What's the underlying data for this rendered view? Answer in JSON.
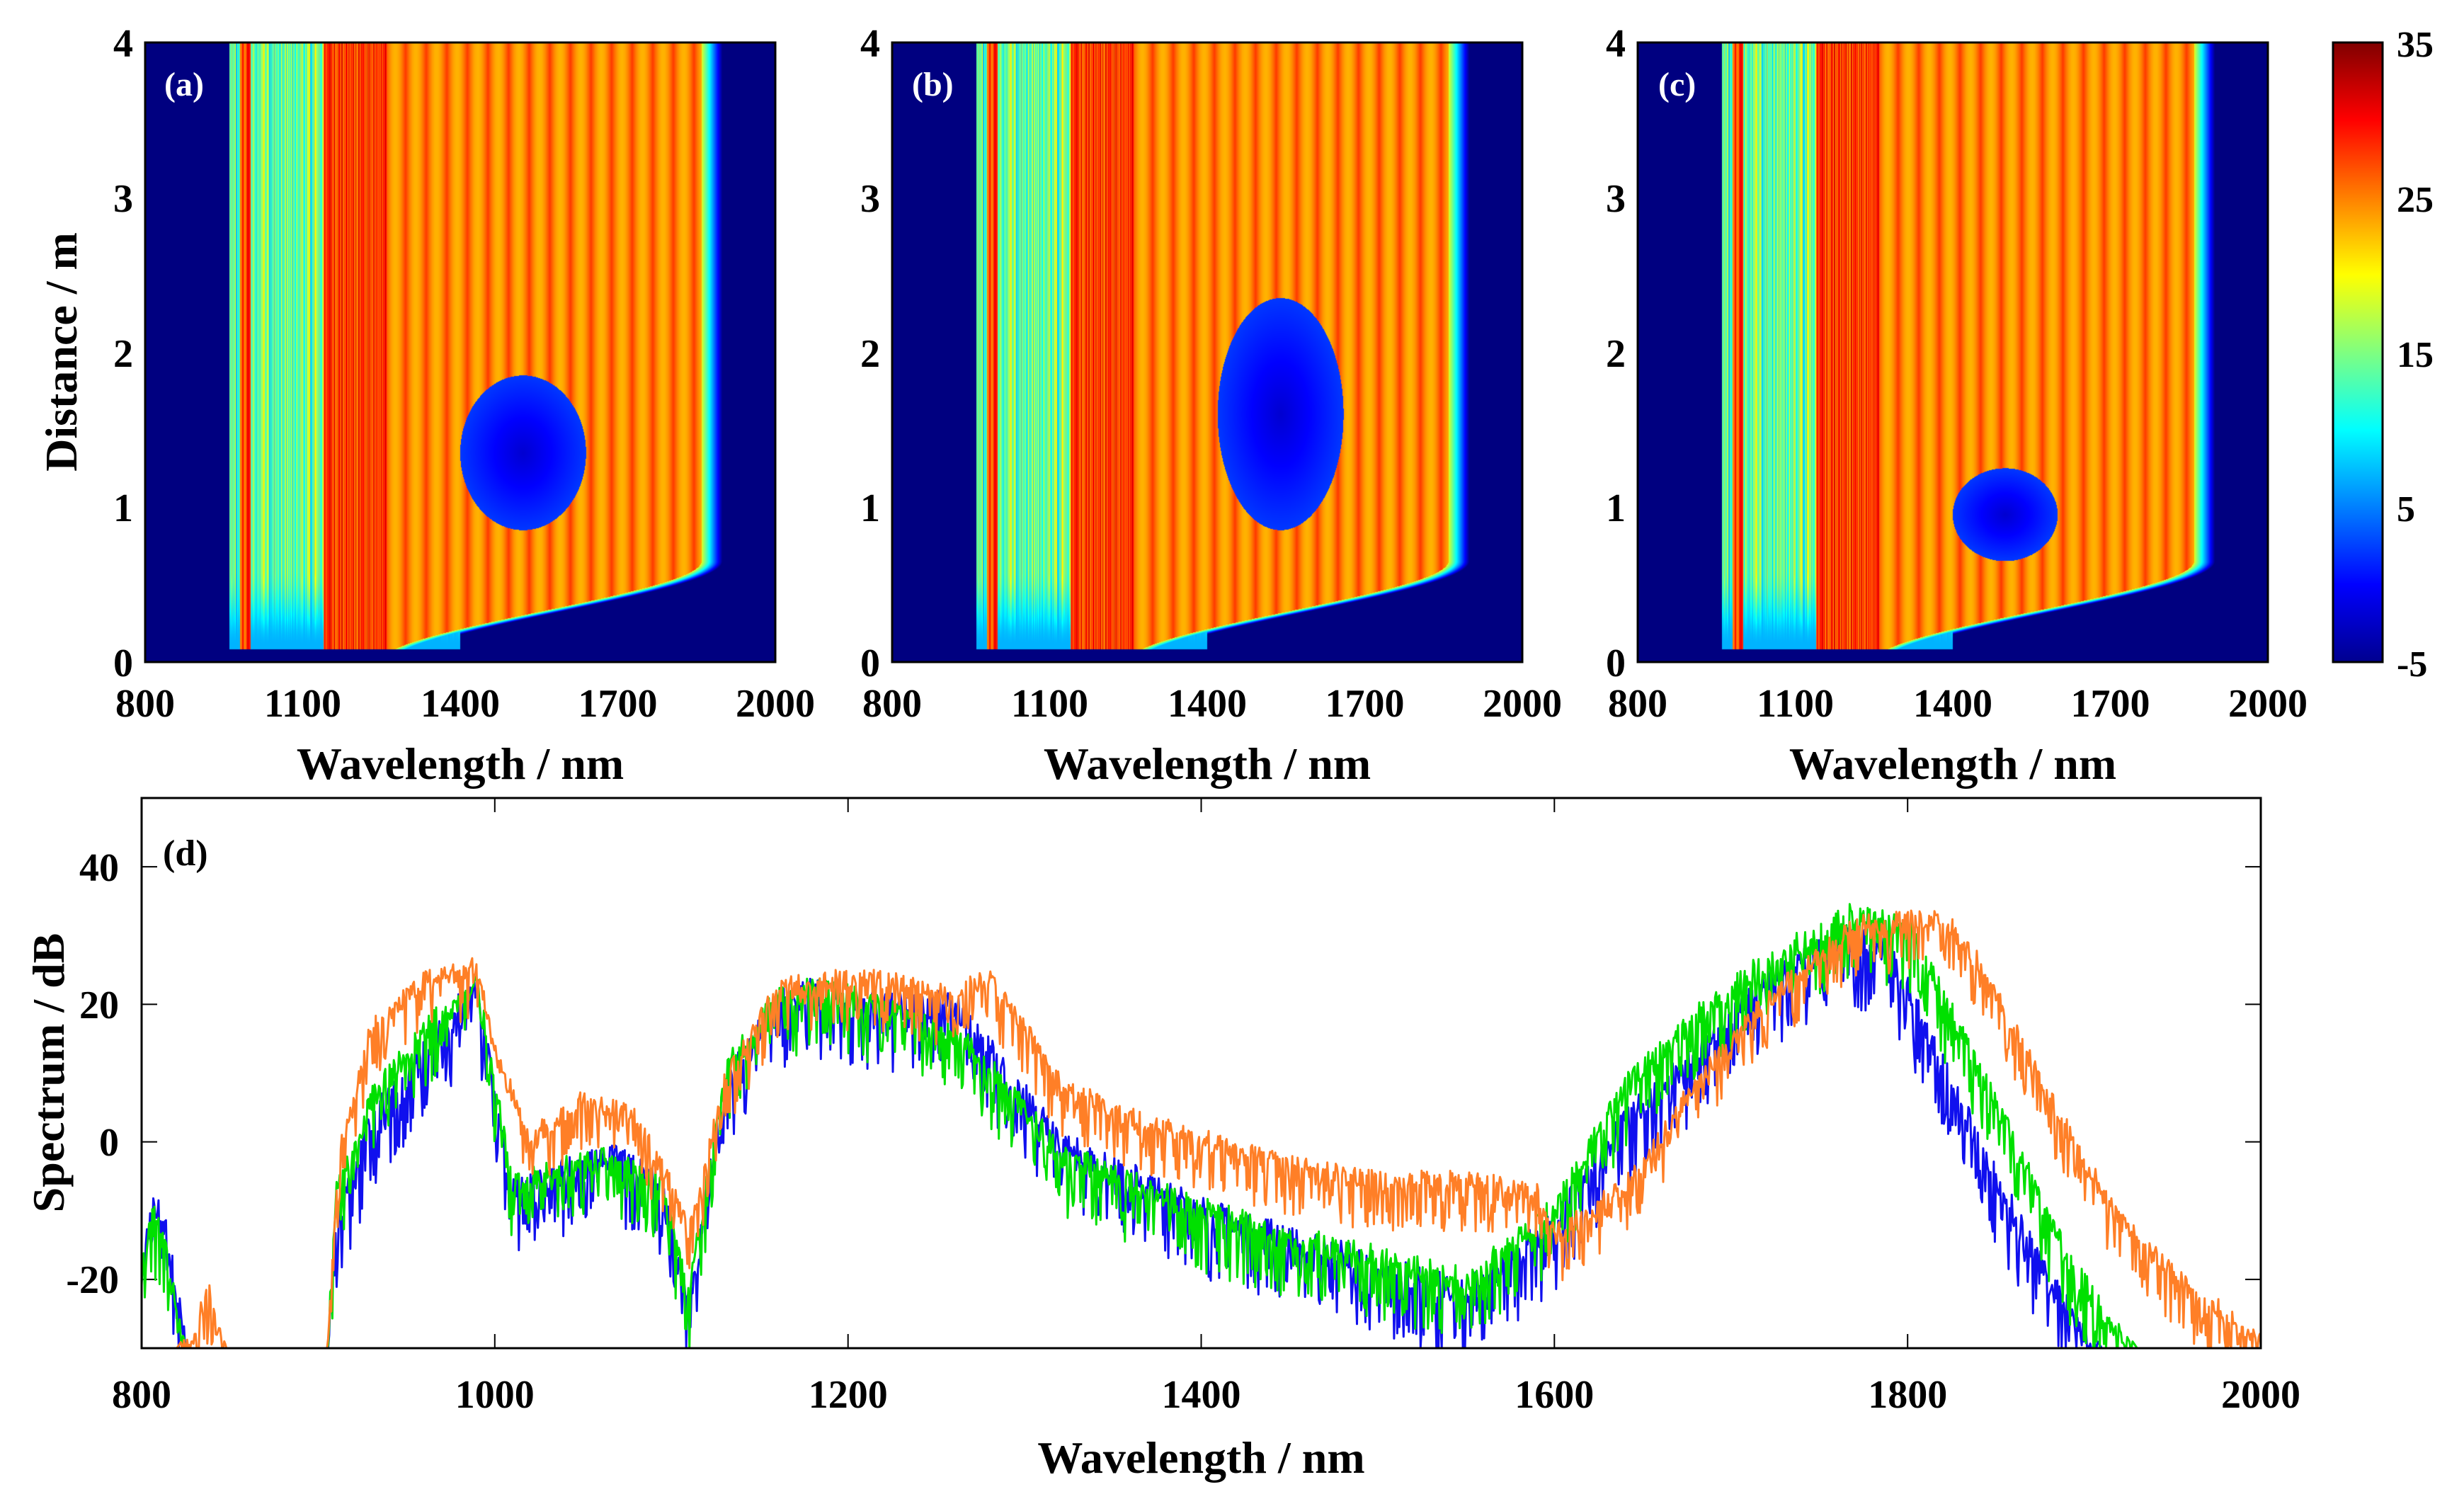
{
  "chart_data": [
    {
      "type": "heatmap",
      "panel_label": "(a)",
      "xlabel": "Wavelength / nm",
      "ylabel": "Distance / m",
      "xlim": [
        800,
        2000
      ],
      "ylim": [
        0,
        4
      ],
      "xticks": [
        "800",
        "1100",
        "1400",
        "1700",
        "2000"
      ],
      "yticks": [
        "0",
        "1",
        "2",
        "3",
        "4"
      ],
      "features": {
        "soliton_max_wavelength": 1860,
        "soliton_onset_distance": 0.35,
        "dispersive_wave_bands_nm": [
          [
            980,
            1000
          ],
          [
            1140,
            1260
          ]
        ],
        "hole_center": [
          1520,
          1.35
        ],
        "hole_radius": [
          120,
          0.5
        ]
      }
    },
    {
      "type": "heatmap",
      "panel_label": "(b)",
      "xlabel": "Wavelength / nm",
      "ylabel": "",
      "xlim": [
        800,
        2000
      ],
      "ylim": [
        0,
        4
      ],
      "xticks": [
        "800",
        "1100",
        "1400",
        "1700",
        "2000"
      ],
      "yticks": [
        "0",
        "1",
        "2",
        "3",
        "4"
      ],
      "features": {
        "soliton_max_wavelength": 1860,
        "soliton_onset_distance": 0.35,
        "dispersive_wave_bands_nm": [
          [
            980,
            1000
          ],
          [
            1140,
            1260
          ]
        ],
        "hole_center": [
          1540,
          1.6
        ],
        "hole_radius": [
          120,
          0.75
        ]
      }
    },
    {
      "type": "heatmap",
      "panel_label": "(c)",
      "xlabel": "Wavelength / nm",
      "ylabel": "",
      "xlim": [
        800,
        2000
      ],
      "ylim": [
        0,
        4
      ],
      "xticks": [
        "800",
        "1100",
        "1400",
        "1700",
        "2000"
      ],
      "yticks": [
        "0",
        "1",
        "2",
        "3",
        "4"
      ],
      "features": {
        "soliton_max_wavelength": 1860,
        "soliton_onset_distance": 0.35,
        "dispersive_wave_bands_nm": [
          [
            980,
            1000
          ],
          [
            1140,
            1260
          ]
        ],
        "hole_center": [
          1500,
          0.95
        ],
        "hole_radius": [
          100,
          0.3
        ]
      }
    },
    {
      "type": "colorbar",
      "range": [
        -5,
        35
      ],
      "ticks": [
        "35",
        "25",
        "15",
        "5",
        "-5"
      ],
      "colormap": "jet"
    },
    {
      "type": "line",
      "panel_label": "(d)",
      "xlabel": "Wavelength / nm",
      "ylabel": "Spectrum / dB",
      "xlim": [
        800,
        2000
      ],
      "ylim": [
        -30,
        50
      ],
      "xticks": [
        "800",
        "1000",
        "1200",
        "1400",
        "1600",
        "1800",
        "2000"
      ],
      "yticks": [
        "-20",
        "0",
        "20",
        "40"
      ],
      "series": [
        {
          "name": "blue",
          "color": "#1010ee",
          "noise": 12,
          "x": [
            800,
            805,
            812,
            820,
            826,
            905,
            910,
            930,
            960,
            990,
            1000,
            1010,
            1040,
            1070,
            1095,
            1110,
            1130,
            1160,
            1180,
            1200,
            1230,
            1260,
            1290,
            1320,
            1360,
            1400,
            1450,
            1500,
            1550,
            1580,
            1600,
            1640,
            1680,
            1720,
            1760,
            1790,
            1800,
            1840,
            1880,
            1910
          ],
          "y": [
            -18,
            -6,
            -8,
            -20,
            -30,
            -30,
            -10,
            5,
            15,
            25,
            8,
            -5,
            -2,
            0,
            -5,
            -22,
            10,
            22,
            24,
            22,
            22,
            22,
            12,
            2,
            -3,
            -8,
            -12,
            -16,
            -20,
            -14,
            -10,
            5,
            15,
            25,
            32,
            30,
            24,
            2,
            -18,
            -30
          ]
        },
        {
          "name": "green",
          "color": "#00e000",
          "noise": 11,
          "x": [
            800,
            805,
            812,
            820,
            826,
            905,
            910,
            930,
            960,
            990,
            1000,
            1010,
            1040,
            1070,
            1095,
            1110,
            1130,
            1160,
            1180,
            1200,
            1230,
            1260,
            1290,
            1320,
            1360,
            1400,
            1450,
            1500,
            1550,
            1580,
            1600,
            1640,
            1680,
            1720,
            1770,
            1800,
            1810,
            1850,
            1890,
            1930
          ],
          "y": [
            -18,
            -8,
            -12,
            -22,
            -30,
            -30,
            -5,
            8,
            18,
            25,
            10,
            -4,
            -2,
            0,
            -4,
            -20,
            12,
            23,
            24,
            23,
            20,
            18,
            10,
            0,
            -4,
            -8,
            -12,
            -15,
            -18,
            -12,
            -8,
            10,
            20,
            28,
            35,
            33,
            28,
            8,
            -15,
            -30
          ]
        },
        {
          "name": "orange",
          "color": "#ff7f27",
          "noise": 9,
          "x": [
            800,
            820,
            830,
            838,
            848,
            905,
            912,
            930,
            960,
            990,
            1000,
            1020,
            1050,
            1080,
            1100,
            1110,
            1130,
            1160,
            1190,
            1220,
            1250,
            1280,
            1300,
            1320,
            1360,
            1400,
            1450,
            1500,
            1550,
            1590,
            1600,
            1640,
            1680,
            1720,
            1770,
            1820,
            1840,
            1880,
            1920,
            1960,
            2000
          ],
          "y": [
            -30,
            -30,
            -26,
            -20,
            -30,
            -30,
            0,
            18,
            25,
            27,
            15,
            2,
            8,
            5,
            -5,
            -12,
            10,
            24,
            25,
            25,
            23,
            25,
            18,
            10,
            5,
            2,
            -2,
            -4,
            -4,
            -6,
            -12,
            -5,
            10,
            22,
            33,
            34,
            28,
            8,
            -10,
            -20,
            -27
          ]
        }
      ]
    }
  ],
  "colors": {
    "axis": "#000000",
    "background": "#ffffff"
  }
}
